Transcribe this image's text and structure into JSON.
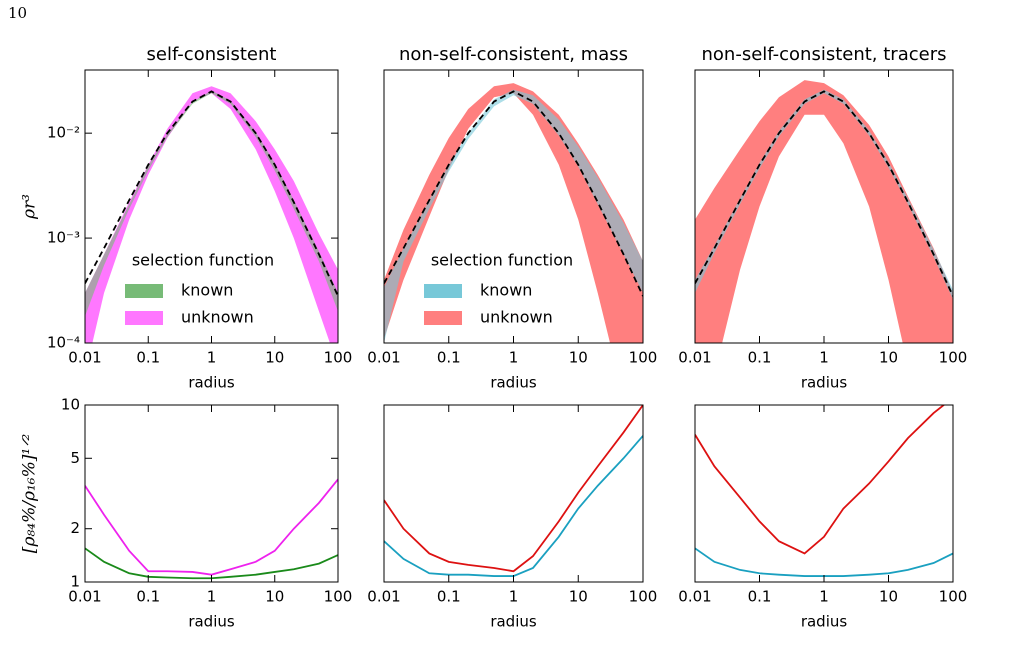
{
  "page_number": "10",
  "chart_data": [
    {
      "type": "band",
      "title": "self-consistent",
      "xlabel": "radius",
      "ylabel": "ρr³",
      "xscale": "log",
      "yscale": "log",
      "xlim": [
        0.01,
        100
      ],
      "ylim": [
        0.0001,
        0.04
      ],
      "xticks": [
        0.01,
        0.1,
        1,
        10,
        100
      ],
      "yticks": [
        {
          "value": 0.0001,
          "label": "10⁻⁴"
        },
        {
          "value": 0.001,
          "label": "10⁻³"
        },
        {
          "value": 0.01,
          "label": "10⁻²"
        }
      ],
      "x": [
        0.01,
        0.02,
        0.05,
        0.1,
        0.2,
        0.5,
        1,
        2,
        5,
        10,
        20,
        50,
        100
      ],
      "legend_title": "selection function",
      "legend": "lower center",
      "series": [
        {
          "name": "known",
          "color": "#77bb77",
          "lower": [
            0.00018,
            0.00055,
            0.0019,
            0.0044,
            0.0092,
            0.019,
            0.024,
            0.019,
            0.0092,
            0.0044,
            0.0019,
            0.0006,
            0.0002
          ],
          "upper": [
            0.0003,
            0.0007,
            0.0021,
            0.0049,
            0.0098,
            0.0198,
            0.0255,
            0.0205,
            0.0103,
            0.0052,
            0.0023,
            0.00075,
            0.0003
          ]
        },
        {
          "name": "unknown",
          "color": "#ff77ff",
          "lower": [
            5e-05,
            0.0003,
            0.0015,
            0.004,
            0.009,
            0.02,
            0.024,
            0.017,
            0.007,
            0.0028,
            0.001,
            0.0002,
            6e-05
          ],
          "upper": [
            0.0003,
            0.0007,
            0.0022,
            0.005,
            0.011,
            0.024,
            0.028,
            0.024,
            0.013,
            0.007,
            0.0035,
            0.0011,
            0.0005
          ]
        }
      ],
      "model": {
        "style": "dashed",
        "color": "#000000",
        "values": [
          0.00037,
          0.0008,
          0.0023,
          0.005,
          0.01,
          0.02,
          0.025,
          0.02,
          0.01,
          0.005,
          0.0022,
          0.0007,
          0.00028
        ]
      }
    },
    {
      "type": "band",
      "title": "non-self-consistent, mass",
      "xlabel": "radius",
      "xscale": "log",
      "yscale": "log",
      "xlim": [
        0.01,
        100
      ],
      "ylim": [
        0.0001,
        0.04
      ],
      "xticks": [
        0.01,
        0.1,
        1,
        10,
        100
      ],
      "x": [
        0.01,
        0.02,
        0.05,
        0.1,
        0.2,
        0.5,
        1,
        2,
        5,
        10,
        20,
        50,
        100
      ],
      "legend_title": "selection function",
      "legend": "lower center",
      "series": [
        {
          "name": "known",
          "color": "#77c8d8",
          "lower": [
            0.0001,
            0.0006,
            0.0019,
            0.0043,
            0.0088,
            0.018,
            0.023,
            0.019,
            0.0095,
            0.0048,
            0.0021,
            0.0007,
            0.0003
          ],
          "upper": [
            0.00034,
            0.0008,
            0.0023,
            0.005,
            0.01,
            0.021,
            0.026,
            0.023,
            0.0135,
            0.0075,
            0.0038,
            0.0014,
            0.0006
          ]
        },
        {
          "name": "unknown",
          "color": "#ff7f7f",
          "lower": [
            0.00011,
            0.0004,
            0.0016,
            0.0045,
            0.011,
            0.022,
            0.024,
            0.015,
            0.005,
            0.0015,
            0.0003,
            3e-05,
            1e-05
          ],
          "upper": [
            0.0004,
            0.0012,
            0.004,
            0.009,
            0.017,
            0.028,
            0.03,
            0.025,
            0.015,
            0.008,
            0.004,
            0.0015,
            0.0006
          ]
        }
      ],
      "model": {
        "style": "dashed",
        "color": "#000000",
        "values": [
          0.00037,
          0.0008,
          0.0023,
          0.005,
          0.01,
          0.02,
          0.025,
          0.02,
          0.01,
          0.005,
          0.0022,
          0.0007,
          0.00028
        ]
      }
    },
    {
      "type": "band",
      "title": "non-self-consistent, tracers",
      "xlabel": "radius",
      "xscale": "log",
      "yscale": "log",
      "xlim": [
        0.01,
        100
      ],
      "ylim": [
        0.0001,
        0.04
      ],
      "xticks": [
        0.01,
        0.1,
        1,
        10,
        100
      ],
      "x": [
        0.01,
        0.02,
        0.05,
        0.1,
        0.2,
        0.5,
        1,
        2,
        5,
        10,
        20,
        50,
        100
      ],
      "series": [
        {
          "name": "known",
          "color": "#77c8d8",
          "lower": [
            0.0003,
            0.00072,
            0.0021,
            0.0046,
            0.0093,
            0.019,
            0.024,
            0.019,
            0.0095,
            0.0047,
            0.0021,
            0.00066,
            0.00026
          ],
          "upper": [
            0.0004,
            0.00085,
            0.0024,
            0.0052,
            0.0105,
            0.021,
            0.026,
            0.021,
            0.0106,
            0.0053,
            0.0024,
            0.00078,
            0.00032
          ]
        },
        {
          "name": "unknown",
          "color": "#ff7f7f",
          "lower": [
            5e-05,
            5e-05,
            0.0005,
            0.002,
            0.006,
            0.015,
            0.015,
            0.008,
            0.002,
            0.0004,
            6e-05,
            2e-05,
            1e-05
          ],
          "upper": [
            0.0015,
            0.003,
            0.007,
            0.013,
            0.022,
            0.032,
            0.03,
            0.023,
            0.012,
            0.006,
            0.0025,
            0.0008,
            0.0003
          ]
        }
      ],
      "model": {
        "style": "dashed",
        "color": "#000000",
        "values": [
          0.00037,
          0.0008,
          0.0023,
          0.005,
          0.01,
          0.02,
          0.025,
          0.02,
          0.01,
          0.005,
          0.0022,
          0.0007,
          0.00028
        ]
      }
    },
    {
      "type": "line",
      "xlabel": "radius",
      "ylabel": "[ρ₈₄%/ρ₁₆%]¹ᐟ²",
      "xscale": "log",
      "yscale": "log",
      "xlim": [
        0.01,
        100
      ],
      "ylim": [
        1,
        10
      ],
      "xticks": [
        0.01,
        0.1,
        1,
        10,
        100
      ],
      "yticks": [
        1,
        2,
        5,
        10
      ],
      "x": [
        0.01,
        0.02,
        0.05,
        0.1,
        0.2,
        0.5,
        1,
        2,
        5,
        10,
        20,
        50,
        100
      ],
      "series": [
        {
          "color": "#1a8a1a",
          "values": [
            1.55,
            1.3,
            1.12,
            1.07,
            1.06,
            1.05,
            1.05,
            1.07,
            1.1,
            1.14,
            1.18,
            1.27,
            1.42
          ]
        },
        {
          "color": "#ee22ee",
          "values": [
            3.5,
            2.4,
            1.5,
            1.15,
            1.15,
            1.14,
            1.1,
            1.18,
            1.3,
            1.5,
            2.0,
            2.8,
            3.8
          ]
        }
      ]
    },
    {
      "type": "line",
      "xlabel": "radius",
      "xscale": "log",
      "yscale": "log",
      "xlim": [
        0.01,
        100
      ],
      "ylim": [
        1,
        10
      ],
      "xticks": [
        0.01,
        0.1,
        1,
        10,
        100
      ],
      "x": [
        0.01,
        0.02,
        0.05,
        0.1,
        0.2,
        0.5,
        1,
        2,
        5,
        10,
        20,
        50,
        100
      ],
      "series": [
        {
          "color": "#1aa0c0",
          "values": [
            1.7,
            1.35,
            1.12,
            1.1,
            1.1,
            1.08,
            1.08,
            1.2,
            1.8,
            2.6,
            3.5,
            5,
            6.7
          ]
        },
        {
          "color": "#dd1111",
          "values": [
            2.9,
            2.0,
            1.45,
            1.3,
            1.25,
            1.2,
            1.15,
            1.4,
            2.2,
            3.2,
            4.5,
            7,
            10
          ]
        }
      ]
    },
    {
      "type": "line",
      "xlabel": "radius",
      "xscale": "log",
      "yscale": "log",
      "xlim": [
        0.01,
        100
      ],
      "ylim": [
        1,
        10
      ],
      "xticks": [
        0.01,
        0.1,
        1,
        10,
        100
      ],
      "x": [
        0.01,
        0.02,
        0.05,
        0.1,
        0.2,
        0.5,
        1,
        2,
        5,
        10,
        20,
        50,
        100
      ],
      "series": [
        {
          "color": "#1aa0c0",
          "values": [
            1.55,
            1.3,
            1.17,
            1.12,
            1.1,
            1.08,
            1.08,
            1.08,
            1.1,
            1.12,
            1.17,
            1.28,
            1.45
          ]
        },
        {
          "color": "#dd1111",
          "values": [
            6.8,
            4.5,
            3.0,
            2.2,
            1.7,
            1.45,
            1.8,
            2.6,
            3.6,
            4.8,
            6.5,
            9,
            11
          ]
        }
      ]
    }
  ]
}
